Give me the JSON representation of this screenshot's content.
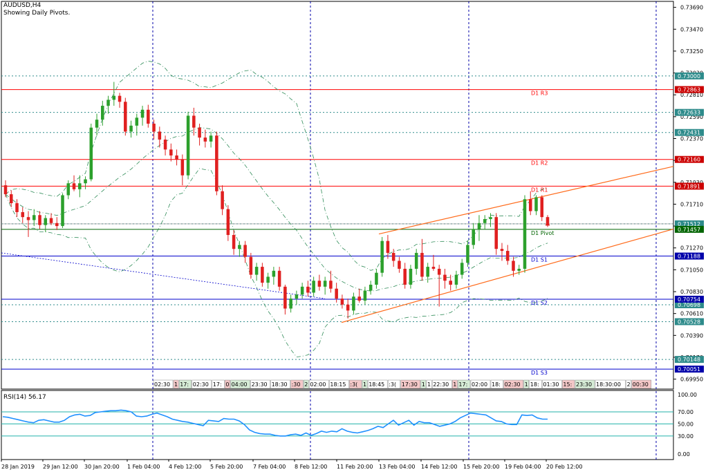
{
  "header": {
    "symbol_timeframe": "AUDUSD,H4",
    "indicator_note": "Showing Daily Pivots."
  },
  "colors": {
    "up_candle": "#2ca02c",
    "down_candle": "#e02020",
    "pivot_red": "#ff0000",
    "pivot_blue": "#0000cc",
    "pivot_green": "#006400",
    "channel": "#ff6a1a",
    "band": "#2e8b57",
    "dotted_teal": "#2e8b8b",
    "rsi_line": "#1e90ff",
    "rsi_level": "#20b2aa",
    "vgrid": "#0000aa",
    "tag_teal_bg": "#2e8b8b",
    "tag_red_bg": "#cc0000",
    "tag_green_bg": "#006400",
    "tag_blue_bg": "#0000aa"
  },
  "chart_data": [
    {
      "type": "candlestick",
      "title": "AUDUSD,H4",
      "subtitle": "Showing Daily Pivots.",
      "ylim": [
        0.6985,
        0.7375
      ],
      "y_ticks": [
        "0.73690",
        "0.73470",
        "0.73250",
        "0.73030",
        "0.72810",
        "0.72590",
        "0.72370",
        "0.72150",
        "0.71930",
        "0.71710",
        "0.71490",
        "0.71270",
        "0.71050",
        "0.70830",
        "0.70610",
        "0.70390",
        "0.70170",
        "0.69950"
      ],
      "x_ticks": [
        "28 Jan 2019",
        "29 Jan 12:00",
        "30 Jan 20:00",
        "1 Feb 04:00",
        "4 Feb 12:00",
        "5 Feb 20:00",
        "7 Feb 04:00",
        "8 Feb 12:00",
        "11 Feb 20:00",
        "13 Feb 04:00",
        "14 Feb 12:00",
        "15 Feb 20:00",
        "19 Feb 04:00",
        "20 Feb 12:00"
      ],
      "pivot_levels": [
        {
          "name": "D1 R3",
          "value": 0.72863,
          "tag": "0.72863"
        },
        {
          "name": "D1 R2",
          "value": 0.7216,
          "tag": "0.72160"
        },
        {
          "name": "D1 R1",
          "value": 0.71891,
          "tag": "0.71891"
        },
        {
          "name": "D1 Pivot",
          "value": 0.71457,
          "tag": "0.71457"
        },
        {
          "name": "D1 S1",
          "value": 0.71188,
          "tag": "0.71188"
        },
        {
          "name": "D1 S2",
          "value": 0.70754,
          "tag": "0.70754"
        },
        {
          "name": "D1 S3",
          "value": 0.70051,
          "tag": "0.70051"
        }
      ],
      "dotted_levels": [
        {
          "value": 0.73,
          "tag": "0.73000"
        },
        {
          "value": 0.72633,
          "tag": "0.72633"
        },
        {
          "value": 0.72431,
          "tag": "0.72431"
        },
        {
          "value": 0.71512,
          "tag": "0.71512"
        },
        {
          "value": 0.70698,
          "tag": "0.70698"
        },
        {
          "value": 0.70528,
          "tag": "0.70528"
        },
        {
          "value": 0.70148,
          "tag": "0.70148"
        }
      ],
      "current_price": 0.715,
      "candles": [
        {
          "o": 0.719,
          "h": 0.7195,
          "l": 0.7178,
          "c": 0.7181
        },
        {
          "o": 0.7181,
          "h": 0.7185,
          "l": 0.7168,
          "c": 0.7172
        },
        {
          "o": 0.7172,
          "h": 0.7176,
          "l": 0.7158,
          "c": 0.7163
        },
        {
          "o": 0.7163,
          "h": 0.7168,
          "l": 0.7152,
          "c": 0.7158
        },
        {
          "o": 0.7158,
          "h": 0.7164,
          "l": 0.7138,
          "c": 0.7155
        },
        {
          "o": 0.7155,
          "h": 0.7166,
          "l": 0.7149,
          "c": 0.716
        },
        {
          "o": 0.716,
          "h": 0.7164,
          "l": 0.7146,
          "c": 0.715
        },
        {
          "o": 0.715,
          "h": 0.716,
          "l": 0.7143,
          "c": 0.7157
        },
        {
          "o": 0.7157,
          "h": 0.7162,
          "l": 0.715,
          "c": 0.7152
        },
        {
          "o": 0.7152,
          "h": 0.7158,
          "l": 0.7145,
          "c": 0.7149
        },
        {
          "o": 0.7149,
          "h": 0.7182,
          "l": 0.7147,
          "c": 0.718
        },
        {
          "o": 0.718,
          "h": 0.7195,
          "l": 0.7176,
          "c": 0.7192
        },
        {
          "o": 0.7192,
          "h": 0.72,
          "l": 0.7184,
          "c": 0.7186
        },
        {
          "o": 0.7186,
          "h": 0.72,
          "l": 0.7178,
          "c": 0.7192
        },
        {
          "o": 0.7192,
          "h": 0.7199,
          "l": 0.7186,
          "c": 0.7196
        },
        {
          "o": 0.7196,
          "h": 0.7252,
          "l": 0.7194,
          "c": 0.7248
        },
        {
          "o": 0.7248,
          "h": 0.7262,
          "l": 0.724,
          "c": 0.7256
        },
        {
          "o": 0.7256,
          "h": 0.7275,
          "l": 0.725,
          "c": 0.727
        },
        {
          "o": 0.727,
          "h": 0.728,
          "l": 0.7262,
          "c": 0.7276
        },
        {
          "o": 0.7276,
          "h": 0.7294,
          "l": 0.727,
          "c": 0.728
        },
        {
          "o": 0.728,
          "h": 0.7283,
          "l": 0.7268,
          "c": 0.7274
        },
        {
          "o": 0.7274,
          "h": 0.7278,
          "l": 0.724,
          "c": 0.7244
        },
        {
          "o": 0.7244,
          "h": 0.7255,
          "l": 0.7238,
          "c": 0.725
        },
        {
          "o": 0.725,
          "h": 0.7262,
          "l": 0.724,
          "c": 0.7258
        },
        {
          "o": 0.7258,
          "h": 0.727,
          "l": 0.725,
          "c": 0.7266
        },
        {
          "o": 0.7266,
          "h": 0.7271,
          "l": 0.7248,
          "c": 0.7252
        },
        {
          "o": 0.7252,
          "h": 0.7256,
          "l": 0.7236,
          "c": 0.7244
        },
        {
          "o": 0.7244,
          "h": 0.7249,
          "l": 0.7228,
          "c": 0.7236
        },
        {
          "o": 0.7236,
          "h": 0.724,
          "l": 0.722,
          "c": 0.7226
        },
        {
          "o": 0.7226,
          "h": 0.7232,
          "l": 0.7214,
          "c": 0.722
        },
        {
          "o": 0.722,
          "h": 0.7226,
          "l": 0.721,
          "c": 0.7216
        },
        {
          "o": 0.7216,
          "h": 0.7221,
          "l": 0.719,
          "c": 0.72
        },
        {
          "o": 0.72,
          "h": 0.7264,
          "l": 0.7196,
          "c": 0.726
        },
        {
          "o": 0.726,
          "h": 0.7268,
          "l": 0.724,
          "c": 0.7248
        },
        {
          "o": 0.7248,
          "h": 0.7252,
          "l": 0.723,
          "c": 0.7238
        },
        {
          "o": 0.7238,
          "h": 0.7246,
          "l": 0.7228,
          "c": 0.7234
        },
        {
          "o": 0.7234,
          "h": 0.7244,
          "l": 0.7228,
          "c": 0.724
        },
        {
          "o": 0.724,
          "h": 0.7244,
          "l": 0.718,
          "c": 0.7184
        },
        {
          "o": 0.7184,
          "h": 0.719,
          "l": 0.716,
          "c": 0.7166
        },
        {
          "o": 0.7166,
          "h": 0.717,
          "l": 0.7134,
          "c": 0.714
        },
        {
          "o": 0.714,
          "h": 0.7145,
          "l": 0.712,
          "c": 0.7126
        },
        {
          "o": 0.7126,
          "h": 0.7134,
          "l": 0.7118,
          "c": 0.713
        },
        {
          "o": 0.713,
          "h": 0.7134,
          "l": 0.7112,
          "c": 0.7118
        },
        {
          "o": 0.7118,
          "h": 0.7122,
          "l": 0.7096,
          "c": 0.71
        },
        {
          "o": 0.71,
          "h": 0.7112,
          "l": 0.7094,
          "c": 0.7108
        },
        {
          "o": 0.7108,
          "h": 0.7112,
          "l": 0.7088,
          "c": 0.7092
        },
        {
          "o": 0.7092,
          "h": 0.7102,
          "l": 0.7086,
          "c": 0.7098
        },
        {
          "o": 0.7098,
          "h": 0.7108,
          "l": 0.709,
          "c": 0.7104
        },
        {
          "o": 0.7104,
          "h": 0.7108,
          "l": 0.7084,
          "c": 0.7088
        },
        {
          "o": 0.7088,
          "h": 0.709,
          "l": 0.706,
          "c": 0.7066
        },
        {
          "o": 0.7066,
          "h": 0.708,
          "l": 0.7062,
          "c": 0.7076
        },
        {
          "o": 0.7076,
          "h": 0.7084,
          "l": 0.707,
          "c": 0.708
        },
        {
          "o": 0.708,
          "h": 0.7092,
          "l": 0.7076,
          "c": 0.7088
        },
        {
          "o": 0.7088,
          "h": 0.7094,
          "l": 0.7078,
          "c": 0.7082
        },
        {
          "o": 0.7082,
          "h": 0.7098,
          "l": 0.7078,
          "c": 0.7094
        },
        {
          "o": 0.7094,
          "h": 0.71,
          "l": 0.7084,
          "c": 0.7088
        },
        {
          "o": 0.7088,
          "h": 0.7098,
          "l": 0.708,
          "c": 0.7094
        },
        {
          "o": 0.7094,
          "h": 0.7104,
          "l": 0.7082,
          "c": 0.7086
        },
        {
          "o": 0.7086,
          "h": 0.7092,
          "l": 0.7072,
          "c": 0.7076
        },
        {
          "o": 0.7076,
          "h": 0.708,
          "l": 0.7066,
          "c": 0.707
        },
        {
          "o": 0.707,
          "h": 0.7076,
          "l": 0.7056,
          "c": 0.7064
        },
        {
          "o": 0.7064,
          "h": 0.7082,
          "l": 0.706,
          "c": 0.7078
        },
        {
          "o": 0.7078,
          "h": 0.7086,
          "l": 0.7072,
          "c": 0.7074
        },
        {
          "o": 0.7074,
          "h": 0.7088,
          "l": 0.707,
          "c": 0.7084
        },
        {
          "o": 0.7084,
          "h": 0.7094,
          "l": 0.708,
          "c": 0.709
        },
        {
          "o": 0.709,
          "h": 0.7106,
          "l": 0.7086,
          "c": 0.7102
        },
        {
          "o": 0.7102,
          "h": 0.7138,
          "l": 0.7098,
          "c": 0.7134
        },
        {
          "o": 0.7134,
          "h": 0.714,
          "l": 0.7116,
          "c": 0.7122
        },
        {
          "o": 0.7122,
          "h": 0.7126,
          "l": 0.7108,
          "c": 0.7114
        },
        {
          "o": 0.7114,
          "h": 0.7118,
          "l": 0.7102,
          "c": 0.7106
        },
        {
          "o": 0.7106,
          "h": 0.7112,
          "l": 0.7086,
          "c": 0.709
        },
        {
          "o": 0.709,
          "h": 0.711,
          "l": 0.7086,
          "c": 0.7106
        },
        {
          "o": 0.7106,
          "h": 0.7126,
          "l": 0.71,
          "c": 0.7122
        },
        {
          "o": 0.7122,
          "h": 0.7136,
          "l": 0.7094,
          "c": 0.7098
        },
        {
          "o": 0.7098,
          "h": 0.7112,
          "l": 0.7092,
          "c": 0.7108
        },
        {
          "o": 0.7108,
          "h": 0.712,
          "l": 0.7104,
          "c": 0.7106
        },
        {
          "o": 0.7106,
          "h": 0.711,
          "l": 0.7068,
          "c": 0.71
        },
        {
          "o": 0.71,
          "h": 0.7106,
          "l": 0.7086,
          "c": 0.7094
        },
        {
          "o": 0.7094,
          "h": 0.71,
          "l": 0.7084,
          "c": 0.709
        },
        {
          "o": 0.709,
          "h": 0.7104,
          "l": 0.7086,
          "c": 0.71
        },
        {
          "o": 0.71,
          "h": 0.7116,
          "l": 0.7096,
          "c": 0.7112
        },
        {
          "o": 0.7112,
          "h": 0.7134,
          "l": 0.7108,
          "c": 0.713
        },
        {
          "o": 0.713,
          "h": 0.7152,
          "l": 0.7126,
          "c": 0.7146
        },
        {
          "o": 0.7146,
          "h": 0.716,
          "l": 0.7134,
          "c": 0.7152
        },
        {
          "o": 0.7152,
          "h": 0.716,
          "l": 0.7146,
          "c": 0.7156
        },
        {
          "o": 0.7156,
          "h": 0.7162,
          "l": 0.7148,
          "c": 0.7158
        },
        {
          "o": 0.7158,
          "h": 0.7162,
          "l": 0.712,
          "c": 0.7126
        },
        {
          "o": 0.7126,
          "h": 0.7132,
          "l": 0.7114,
          "c": 0.7124
        },
        {
          "o": 0.7124,
          "h": 0.713,
          "l": 0.711,
          "c": 0.7114
        },
        {
          "o": 0.7114,
          "h": 0.7118,
          "l": 0.7098,
          "c": 0.7104
        },
        {
          "o": 0.7104,
          "h": 0.711,
          "l": 0.71,
          "c": 0.7106
        },
        {
          "o": 0.7106,
          "h": 0.718,
          "l": 0.7102,
          "c": 0.7176
        },
        {
          "o": 0.7176,
          "h": 0.7184,
          "l": 0.716,
          "c": 0.7164
        },
        {
          "o": 0.7164,
          "h": 0.718,
          "l": 0.716,
          "c": 0.7178
        },
        {
          "o": 0.7178,
          "h": 0.718,
          "l": 0.7154,
          "c": 0.7158
        },
        {
          "o": 0.7158,
          "h": 0.716,
          "l": 0.7148,
          "c": 0.715
        }
      ]
    },
    {
      "type": "line",
      "title": "RSI(14) 56.17",
      "ylim": [
        0,
        100
      ],
      "y_ticks": [
        "100.00",
        "70.00",
        "50.00",
        "30.00",
        "0.00"
      ],
      "levels": [
        70,
        50,
        30
      ],
      "series": [
        {
          "name": "RSI(14)",
          "values": [
            62,
            61,
            59,
            57,
            55,
            53,
            52,
            56,
            57,
            55,
            53,
            53,
            56,
            62,
            65,
            66,
            63,
            64,
            69,
            70,
            71,
            72,
            72,
            73,
            72,
            70,
            63,
            62,
            63,
            66,
            68,
            65,
            62,
            58,
            56,
            54,
            53,
            51,
            49,
            47,
            56,
            55,
            54,
            59,
            58,
            58,
            55,
            49,
            40,
            36,
            34,
            33,
            33,
            31,
            30,
            30,
            32,
            33,
            31,
            35,
            31,
            34,
            38,
            36,
            38,
            37,
            42,
            38,
            36,
            35,
            37,
            39,
            42,
            46,
            44,
            50,
            56,
            48,
            52,
            56,
            48,
            54,
            52,
            52,
            49,
            46,
            48,
            50,
            54,
            60,
            64,
            68,
            67,
            66,
            65,
            60,
            55,
            54,
            50,
            49,
            49,
            65,
            64,
            65,
            60,
            58,
            58
          ]
        }
      ]
    }
  ],
  "date_label_row": [
    "02:30",
    "1",
    "17:",
    "02:30",
    "17:",
    "0",
    "04:00",
    "23:30",
    "18:30",
    ":30",
    "2",
    "02:00",
    "18:15",
    ":3(",
    "1",
    "18:45",
    ":3(",
    "17:30",
    "1",
    "1",
    "22:30",
    "1",
    "17:",
    "02:00",
    "18:",
    "02:30",
    "1",
    "18:",
    "01:30",
    "15:",
    "23:30",
    "18:30:00",
    "2",
    "00:30"
  ],
  "x_axis_labels": [
    "28 Jan 2019",
    "29 Jan 12:00",
    "30 Jan 20:00",
    "1 Feb 04:00",
    "4 Feb 12:00",
    "5 Feb 20:00",
    "7 Feb 04:00",
    "8 Feb 12:00",
    "11 Feb 20:00",
    "13 Feb 04:00",
    "14 Feb 12:00",
    "15 Feb 20:00",
    "19 Feb 04:00",
    "20 Feb 12:00"
  ]
}
